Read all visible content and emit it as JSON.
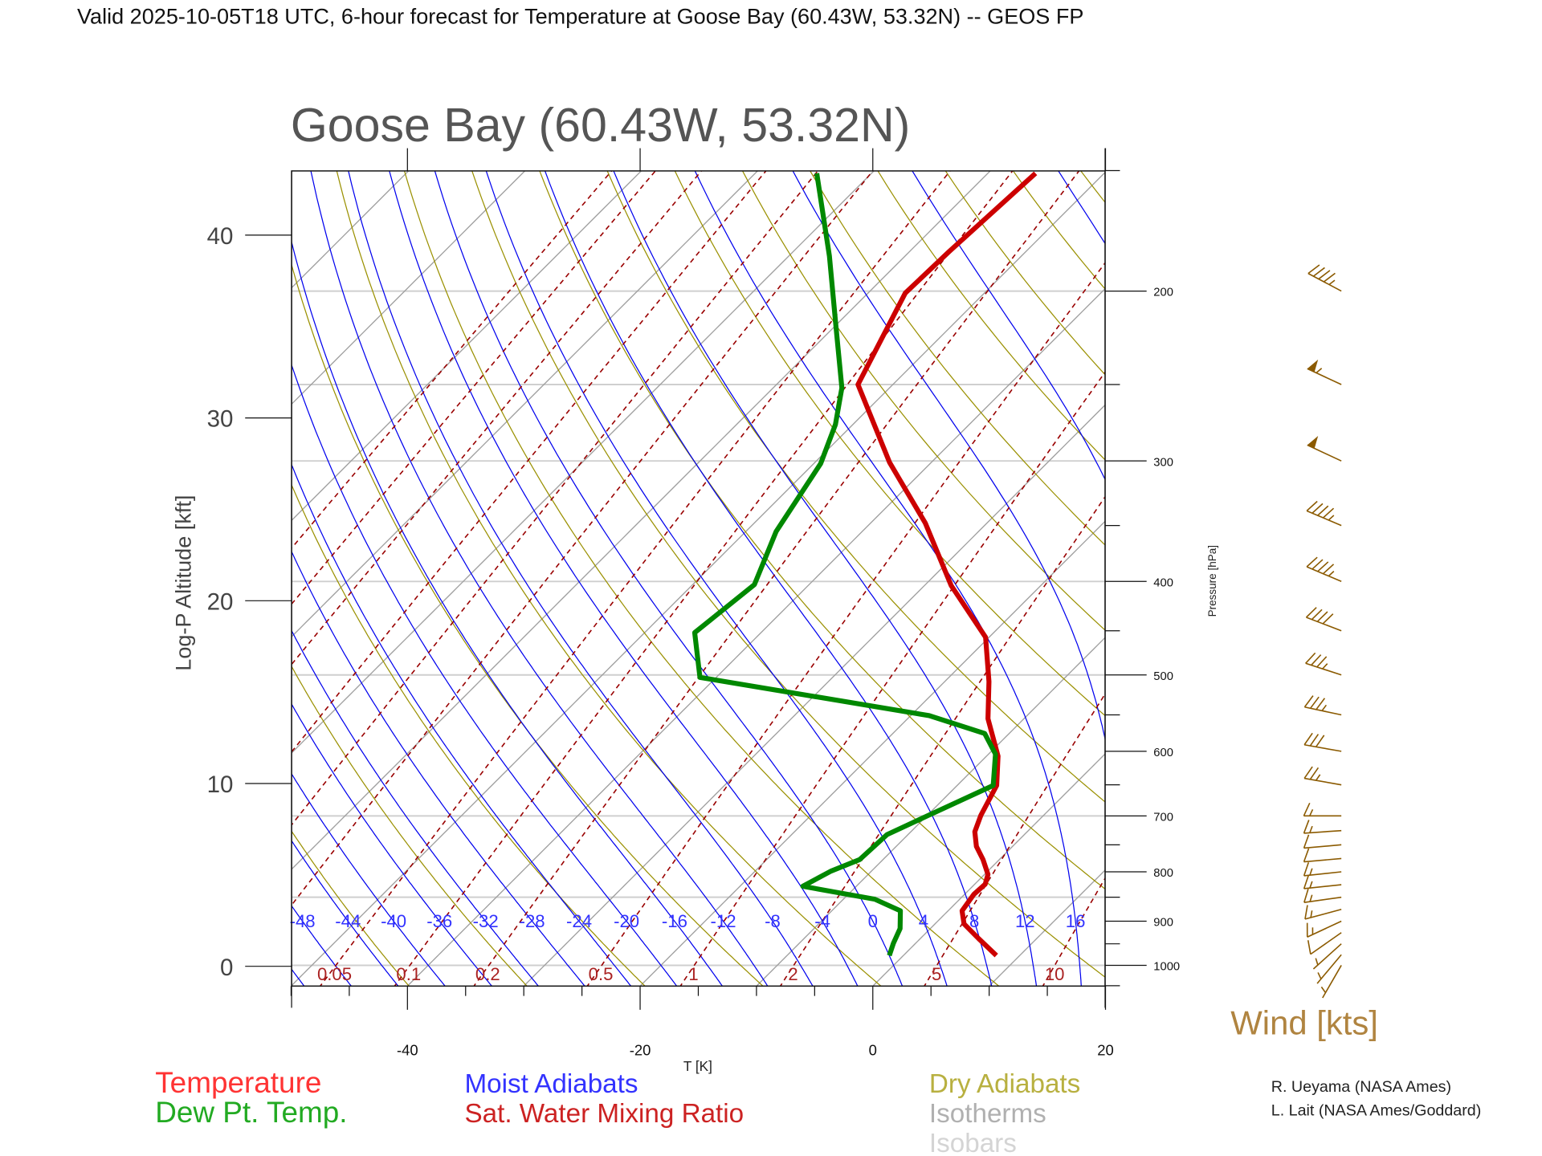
{
  "header": {
    "title": "Valid 2025-10-05T18 UTC, 6-hour forecast for Temperature at Goose Bay (60.43W, 53.32N) -- GEOS FP"
  },
  "chart_data": {
    "type": "line",
    "subtype": "skew-T log-P diagram",
    "title": "Goose Bay (60.43W, 53.32N)",
    "xlabel": "T [K]",
    "ylabel_left": "Log-P Altitude [kft]",
    "ylabel_right": "Pressure [hPa]",
    "x_ticks": [
      "-40",
      "-20",
      "0",
      "20"
    ],
    "x_tick_values": [
      -40,
      -20,
      0,
      20
    ],
    "xlim": [
      -50,
      20
    ],
    "left_ticks": [
      "0",
      "10",
      "20",
      "30",
      "40"
    ],
    "left_tick_values": [
      0,
      10,
      20,
      30,
      40
    ],
    "pressure_ticks": [
      "1000",
      "900",
      "800",
      "700",
      "600",
      "500",
      "400",
      "300",
      "200"
    ],
    "pressure_tick_values": [
      1000,
      900,
      800,
      700,
      600,
      500,
      400,
      300,
      200
    ],
    "pressure_range": [
      1051,
      150
    ],
    "isobars": [
      1000,
      850,
      700,
      500,
      400,
      300,
      250,
      200
    ],
    "isotherm_step": 10,
    "dry_adiabat_step_K": 10,
    "moist_adiabat_labels": [
      "-48",
      "-44",
      "-40",
      "-36",
      "-32",
      "-28",
      "-24",
      "-20",
      "-16",
      "-12",
      "-8",
      "-4",
      "0",
      "4",
      "8",
      "12",
      "16"
    ],
    "moist_adiabat_values": [
      -48,
      -44,
      -40,
      -36,
      -32,
      -28,
      -24,
      -20,
      -16,
      -12,
      -8,
      -4,
      0,
      4,
      8,
      12,
      16
    ],
    "mixing_ratio_labels": [
      "0.05",
      "0.1",
      "0.2",
      "0.5",
      "1",
      "2",
      "5",
      "10"
    ],
    "mixing_ratio_values": [
      0.05,
      0.1,
      0.2,
      0.5,
      1,
      2,
      5,
      10
    ],
    "series": [
      {
        "name": "Temperature",
        "color": "#cc0000",
        "p": [
          977,
          938,
          906,
          878,
          844,
          824,
          805,
          777,
          753,
          727,
          699,
          651,
          607,
          555,
          508,
          457,
          404,
          348,
          301,
          250,
          201,
          182,
          151
        ],
        "T": [
          8.0,
          5.0,
          2.5,
          1.2,
          0.8,
          0.9,
          0.3,
          -1.4,
          -3.1,
          -4.5,
          -5.4,
          -6.6,
          -9.0,
          -13.1,
          -16.2,
          -20.3,
          -27.7,
          -35.3,
          -43.6,
          -53.0,
          -56.8,
          -56.6,
          -55.9
        ]
      },
      {
        "name": "Dew Pt. Temp.",
        "color": "#008800",
        "p": [
          977,
          949,
          916,
          878,
          854,
          828,
          799,
          777,
          732,
          699,
          651,
          604,
          575,
          551,
          503,
          452,
          403,
          355,
          302,
          275,
          252,
          217,
          184,
          151
        ],
        "T": [
          -1.2,
          -1.9,
          -2.6,
          -4.1,
          -7.3,
          -14.6,
          -13.5,
          -12.0,
          -11.8,
          -9.9,
          -6.9,
          -9.4,
          -12.1,
          -18.4,
          -41.4,
          -45.7,
          -44.7,
          -47.4,
          -49.4,
          -51.5,
          -54.1,
          -60.0,
          -66.5,
          -74.7
        ]
      }
    ],
    "wind": {
      "label": "Wind [kts]",
      "color": "#8b5a00",
      "barbs": [
        {
          "p": 200,
          "dir": 298,
          "spd": 45
        },
        {
          "p": 250,
          "dir": 295,
          "spd": 55
        },
        {
          "p": 300,
          "dir": 295,
          "spd": 50
        },
        {
          "p": 350,
          "dir": 293,
          "spd": 45
        },
        {
          "p": 400,
          "dir": 293,
          "spd": 45
        },
        {
          "p": 450,
          "dir": 291,
          "spd": 40
        },
        {
          "p": 500,
          "dir": 288,
          "spd": 35
        },
        {
          "p": 550,
          "dir": 282,
          "spd": 35
        },
        {
          "p": 600,
          "dir": 280,
          "spd": 30
        },
        {
          "p": 650,
          "dir": 280,
          "spd": 25
        },
        {
          "p": 700,
          "dir": 270,
          "spd": 15
        },
        {
          "p": 725,
          "dir": 266,
          "spd": 15
        },
        {
          "p": 750,
          "dir": 265,
          "spd": 10
        },
        {
          "p": 775,
          "dir": 265,
          "spd": 10
        },
        {
          "p": 800,
          "dir": 264,
          "spd": 15
        },
        {
          "p": 825,
          "dir": 264,
          "spd": 15
        },
        {
          "p": 850,
          "dir": 262,
          "spd": 15
        },
        {
          "p": 875,
          "dir": 255,
          "spd": 15
        },
        {
          "p": 900,
          "dir": 245,
          "spd": 15
        },
        {
          "p": 925,
          "dir": 235,
          "spd": 10
        },
        {
          "p": 950,
          "dir": 228,
          "spd": 5
        },
        {
          "p": 975,
          "dir": 220,
          "spd": 5
        },
        {
          "p": 1000,
          "dir": 210,
          "spd": 5
        }
      ]
    },
    "legend": {
      "temperature": {
        "text": "Temperature",
        "color": "#ff3333"
      },
      "dewpoint": {
        "text": "Dew Pt. Temp.",
        "color": "#22aa22"
      },
      "moist": {
        "text": "Moist Adiabats",
        "color": "#3333ff"
      },
      "mixing": {
        "text": "Sat. Water Mixing Ratio",
        "color": "#cc2222"
      },
      "dry": {
        "text": "Dry Adiabats",
        "color": "#b8b040"
      },
      "isotherms": {
        "text": "Isotherms",
        "color": "#b0b0b0"
      },
      "isobars": {
        "text": "Isobars",
        "color": "#d4d4d4"
      }
    }
  },
  "credits": [
    "R. Ueyama (NASA Ames)",
    "L. Lait (NASA Ames/Goddard)"
  ]
}
